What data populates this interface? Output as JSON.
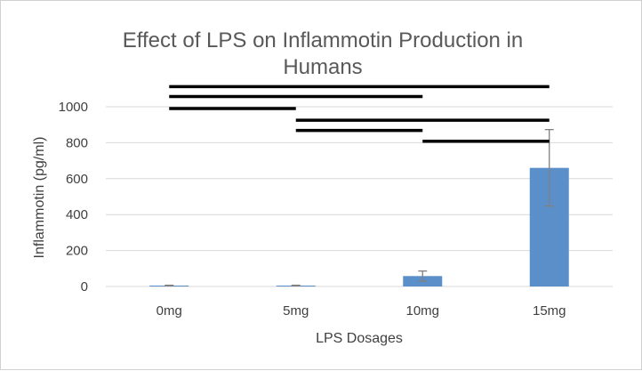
{
  "chart_data": {
    "type": "bar",
    "title_lines": [
      "Effect of LPS on Inflammotin Production in",
      "Humans"
    ],
    "xlabel": "LPS Dosages",
    "ylabel": "Inflammotin (pg/ml)",
    "categories": [
      "0mg",
      "5mg",
      "10mg",
      "15mg"
    ],
    "values": [
      5,
      5,
      58,
      660
    ],
    "error": [
      2,
      2,
      28,
      213
    ],
    "ylim": [
      0,
      1200
    ],
    "yticks": [
      0,
      200,
      400,
      600,
      800,
      1000
    ],
    "grid": true,
    "bar_color": "#5b8fc9",
    "error_color": "#808080",
    "gridline_color": "#d9d9d9",
    "annotation_color": "#000000",
    "significance_lines": [
      {
        "from": "0mg",
        "to": "15mg",
        "level": 1112
      },
      {
        "from": "0mg",
        "to": "10mg",
        "level": 1057
      },
      {
        "from": "0mg",
        "to": "5mg",
        "level": 990
      },
      {
        "from": "5mg",
        "to": "15mg",
        "level": 925
      },
      {
        "from": "5mg",
        "to": "10mg",
        "level": 868
      },
      {
        "from": "10mg",
        "to": "15mg",
        "level": 808
      }
    ]
  }
}
